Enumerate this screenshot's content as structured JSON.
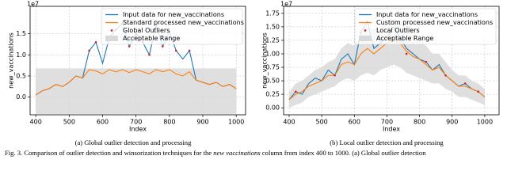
{
  "chart_data": [
    {
      "type": "line",
      "caption": "(a) Global outlier detection and processing",
      "xlabel": "Index",
      "ylabel": "new_vaccinations",
      "y_offset_label": "1e7",
      "xlim": [
        383,
        1028
      ],
      "ylim": [
        -0.42,
        2.15
      ],
      "xticks": [
        400,
        500,
        600,
        700,
        800,
        900,
        1000
      ],
      "yticks": [
        {
          "value": 0,
          "label": "0.0"
        },
        0.5,
        {
          "value": 1,
          "label": "1.0"
        },
        1.5
      ],
      "grid": true,
      "legend": "upper right",
      "x": [
        400,
        420,
        440,
        460,
        480,
        500,
        520,
        540,
        560,
        580,
        600,
        620,
        640,
        660,
        680,
        700,
        720,
        740,
        760,
        780,
        800,
        820,
        840,
        860,
        880,
        900,
        920,
        940,
        960,
        980,
        1000
      ],
      "series": [
        {
          "name": "Input data for new_vaccinations",
          "color": "#1f77b4",
          "values": [
            0.05,
            0.15,
            0.2,
            0.3,
            0.25,
            0.35,
            0.5,
            0.45,
            1.1,
            1.3,
            0.8,
            1.4,
            1.6,
            1.75,
            1.2,
            1.5,
            1.3,
            1.0,
            1.7,
            1.2,
            1.55,
            1.1,
            0.9,
            1.1,
            0.4,
            0.35,
            0.3,
            0.35,
            0.25,
            0.3,
            0.2
          ]
        },
        {
          "name": "Standard processed new_vaccinations",
          "color": "#ff7f0e",
          "values": [
            0.05,
            0.15,
            0.2,
            0.3,
            0.25,
            0.35,
            0.5,
            0.45,
            0.65,
            0.62,
            0.55,
            0.65,
            0.6,
            0.65,
            0.58,
            0.65,
            0.6,
            0.55,
            0.65,
            0.6,
            0.65,
            0.55,
            0.5,
            0.6,
            0.4,
            0.35,
            0.3,
            0.35,
            0.25,
            0.3,
            0.2
          ]
        }
      ],
      "outliers": {
        "name": "Global Outliers",
        "color": "#d62728",
        "x": [
          560,
          580,
          620,
          640,
          660,
          680,
          700,
          720,
          740,
          760,
          780,
          800,
          820,
          860
        ],
        "values": [
          1.1,
          1.3,
          1.4,
          1.6,
          1.75,
          1.2,
          1.5,
          1.3,
          1.0,
          1.7,
          1.2,
          1.55,
          1.1,
          1.1
        ]
      },
      "range": {
        "name": "Acceptable Range",
        "color": "#d9d9d9",
        "x": [
          400,
          1000
        ],
        "lower": [
          -0.4,
          -0.4
        ],
        "upper": [
          0.68,
          0.68
        ]
      }
    },
    {
      "type": "line",
      "caption": "(b) Local outlier detection and processing",
      "xlabel": "Index",
      "ylabel": "new_vaccinations",
      "y_offset_label": "1e7",
      "xlim": [
        383,
        1044
      ],
      "ylim": [
        -0.13,
        1.88
      ],
      "xticks": [
        400,
        500,
        600,
        700,
        800,
        900,
        1000
      ],
      "yticks": [
        {
          "value": 0,
          "label": "0.00"
        },
        0.25,
        {
          "value": 0.5,
          "label": "0.50"
        },
        0.75,
        {
          "value": 1,
          "label": "1.00"
        },
        1.25,
        {
          "value": 1.5,
          "label": "1.50"
        },
        1.75
      ],
      "grid": true,
      "legend": "upper right",
      "x": [
        400,
        420,
        440,
        460,
        480,
        500,
        520,
        540,
        560,
        580,
        600,
        620,
        640,
        660,
        680,
        700,
        720,
        740,
        760,
        780,
        800,
        820,
        840,
        860,
        880,
        900,
        920,
        940,
        960,
        980,
        1000
      ],
      "series": [
        {
          "name": "Input data for new_vaccinations",
          "color": "#1f77b4",
          "values": [
            0.15,
            0.3,
            0.25,
            0.45,
            0.55,
            0.5,
            0.7,
            0.6,
            0.9,
            1.0,
            0.8,
            1.4,
            1.6,
            1.1,
            1.2,
            1.3,
            1.5,
            1.3,
            1.1,
            1.0,
            0.9,
            0.85,
            0.7,
            0.8,
            0.6,
            0.5,
            0.4,
            0.45,
            0.35,
            0.3,
            0.2
          ]
        },
        {
          "name": "Custom processed new_vaccinations",
          "color": "#ff7f0e",
          "values": [
            0.15,
            0.25,
            0.3,
            0.4,
            0.45,
            0.5,
            0.6,
            0.6,
            0.8,
            0.85,
            0.8,
            1.0,
            1.1,
            1.0,
            1.1,
            1.2,
            1.25,
            1.2,
            1.05,
            0.95,
            0.9,
            0.8,
            0.7,
            0.75,
            0.6,
            0.5,
            0.4,
            0.4,
            0.35,
            0.3,
            0.2
          ]
        }
      ],
      "outliers": {
        "name": "Local Outliers",
        "color": "#d62728",
        "x": [
          420,
          540,
          620,
          640,
          700,
          760,
          820,
          880,
          940,
          980
        ],
        "values": [
          0.3,
          0.6,
          1.4,
          1.6,
          1.3,
          1.0,
          0.85,
          0.6,
          0.45,
          0.3
        ]
      },
      "range": {
        "name": "Acceptable Range",
        "color": "#d9d9d9",
        "x": [
          400,
          420,
          440,
          460,
          480,
          500,
          520,
          540,
          560,
          580,
          600,
          620,
          640,
          660,
          680,
          700,
          720,
          740,
          760,
          780,
          800,
          820,
          840,
          860,
          880,
          900,
          920,
          940,
          960,
          980,
          1000
        ],
        "lower": [
          0.0,
          0.05,
          0.1,
          0.2,
          0.25,
          0.3,
          0.35,
          0.4,
          0.5,
          0.55,
          0.5,
          0.6,
          0.65,
          0.6,
          0.7,
          0.75,
          0.8,
          0.75,
          0.65,
          0.6,
          0.55,
          0.5,
          0.45,
          0.45,
          0.35,
          0.3,
          0.2,
          0.2,
          0.15,
          0.1,
          0.05
        ],
        "upper": [
          0.3,
          0.45,
          0.5,
          0.6,
          0.7,
          0.75,
          0.85,
          0.9,
          1.1,
          1.2,
          1.15,
          1.35,
          1.5,
          1.45,
          1.5,
          1.6,
          1.65,
          1.6,
          1.45,
          1.35,
          1.25,
          1.15,
          1.0,
          1.0,
          0.85,
          0.7,
          0.6,
          0.6,
          0.5,
          0.45,
          0.35
        ]
      }
    }
  ],
  "caption": {
    "prefix": "Fig. 3.  Comparison of outlier detection and winsorization techniques for the ",
    "emph": "new vaccinations",
    "suffix": " column from index 400 to 1000. (a) Global outlier detection"
  }
}
